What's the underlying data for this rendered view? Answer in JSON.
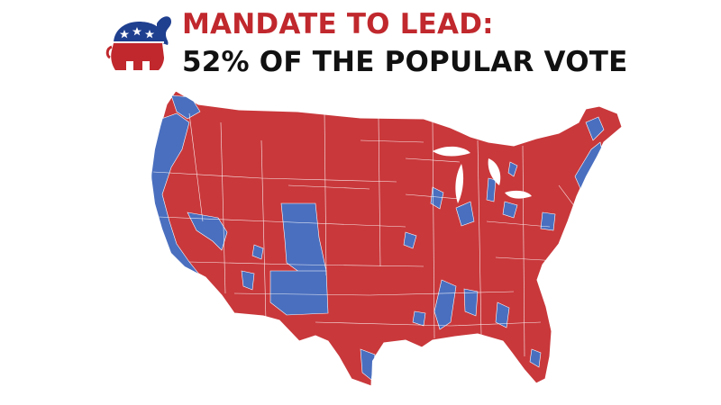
{
  "headline": {
    "line1": "MANDATE TO LEAD:",
    "line2": "52% OF THE POPULAR VOTE"
  },
  "logo": {
    "icon": "republican-elephant-icon"
  },
  "map": {
    "subject": "US counties colored by winning party",
    "colors": {
      "republican": "#c9383b",
      "democratic": "#4a6fbf",
      "border": "#ffffff"
    }
  }
}
